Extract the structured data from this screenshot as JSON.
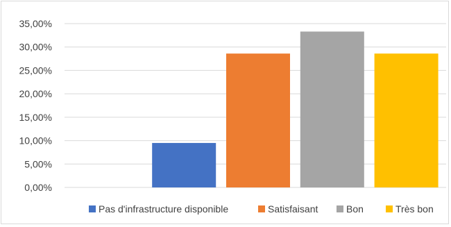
{
  "chart_data": {
    "type": "bar",
    "title": "",
    "xlabel": "",
    "ylabel": "",
    "ylim": [
      0,
      35
    ],
    "yticks": [
      {
        "value": 0,
        "label": "0,00%"
      },
      {
        "value": 5,
        "label": "5,00%"
      },
      {
        "value": 10,
        "label": "10,00%"
      },
      {
        "value": 15,
        "label": "15,00%"
      },
      {
        "value": 20,
        "label": "20,00%"
      },
      {
        "value": 25,
        "label": "25,00%"
      },
      {
        "value": 30,
        "label": "30,00%"
      },
      {
        "value": 35,
        "label": "35,00%"
      }
    ],
    "grid": true,
    "legend_position": "bottom",
    "series": [
      {
        "name": "Pas d'infrastructure disponible",
        "value": 9.5,
        "color": "#4472c4"
      },
      {
        "name": "Satisfaisant",
        "value": 28.6,
        "color": "#ed7d31"
      },
      {
        "name": "Bon",
        "value": 33.3,
        "color": "#a5a5a5"
      },
      {
        "name": "Très bon",
        "value": 28.6,
        "color": "#ffc000"
      }
    ]
  }
}
